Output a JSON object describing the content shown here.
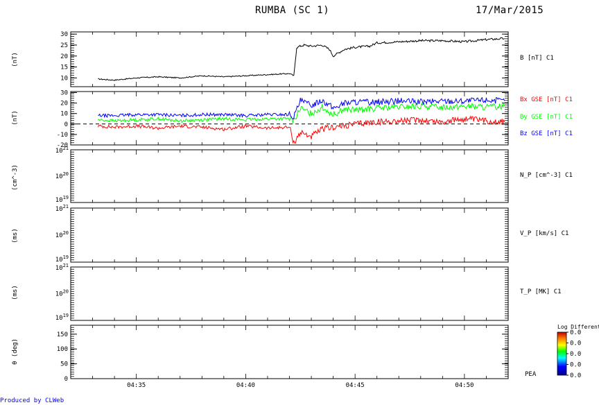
{
  "header": {
    "title": "RUMBA (SC 1)",
    "date": "17/Mar/2015"
  },
  "footer": {
    "credit": "Produced by CLWeb"
  },
  "colorbar": {
    "title": "Log Differential",
    "tick_labels": [
      "0.0",
      "0.0",
      "0.0",
      "0.0",
      "0.0"
    ]
  },
  "chart_data": [
    {
      "type": "line",
      "panel": "b-magnitude",
      "ylabel": "(nT)",
      "ylim": [
        6,
        31
      ],
      "yticks": [
        10,
        15,
        20,
        25,
        30
      ],
      "ytick_labels": [
        "10",
        "15",
        "20",
        "25",
        "30"
      ],
      "xlim": [
        "04:32:00",
        "04:52:00"
      ],
      "series": [
        {
          "name": "B [nT] C1",
          "color": "#000000",
          "x": [
            "04:33:15",
            "04:34:00",
            "04:35:00",
            "04:36:00",
            "04:37:00",
            "04:38:00",
            "04:39:00",
            "04:40:00",
            "04:41:00",
            "04:42:00",
            "04:42:12",
            "04:42:20",
            "04:42:40",
            "04:43:00",
            "04:43:30",
            "04:43:50",
            "04:44:00",
            "04:44:30",
            "04:45:00",
            "04:45:40",
            "04:46:00",
            "04:47:00",
            "04:48:00",
            "04:49:00",
            "04:50:00",
            "04:51:00",
            "04:51:50"
          ],
          "y": [
            9.5,
            9.0,
            10.0,
            10.5,
            10.0,
            11.0,
            10.5,
            11.0,
            11.5,
            12.0,
            11.0,
            24.0,
            25.0,
            24.5,
            25.0,
            23.0,
            20.0,
            23.0,
            24.0,
            24.5,
            26.0,
            26.5,
            27.0,
            27.0,
            26.5,
            27.5,
            28.0
          ]
        }
      ]
    },
    {
      "type": "line",
      "panel": "b-gse-components",
      "ylabel": "(nT)",
      "ylim": [
        -20,
        31
      ],
      "yticks": [
        -20,
        -10,
        0,
        10,
        20,
        30
      ],
      "ytick_labels": [
        "-20",
        "-10",
        "0",
        "10",
        "20",
        "30"
      ],
      "xlim": [
        "04:32:00",
        "04:52:00"
      ],
      "series": [
        {
          "name": "Bx GSE [nT] C1",
          "color": "#ff0000",
          "x": [
            "04:33:15",
            "04:34:00",
            "04:35:00",
            "04:36:00",
            "04:37:00",
            "04:38:00",
            "04:39:00",
            "04:40:00",
            "04:41:00",
            "04:42:00",
            "04:42:12",
            "04:42:30",
            "04:43:00",
            "04:43:30",
            "04:44:00",
            "04:44:30",
            "04:45:00",
            "04:46:00",
            "04:47:00",
            "04:48:00",
            "04:49:00",
            "04:50:00",
            "04:51:00",
            "04:51:50"
          ],
          "y": [
            -2,
            -3,
            -2,
            -4,
            -2,
            -3,
            -5,
            -2,
            -4,
            -3,
            -18,
            -8,
            -12,
            -5,
            -3,
            -2,
            0,
            2,
            3,
            4,
            2,
            5,
            3,
            2
          ]
        },
        {
          "name": "By GSE [nT] C1",
          "color": "#00ff00",
          "x": [
            "04:33:15",
            "04:34:00",
            "04:35:00",
            "04:36:00",
            "04:37:00",
            "04:38:00",
            "04:39:00",
            "04:40:00",
            "04:41:00",
            "04:42:00",
            "04:42:12",
            "04:42:30",
            "04:43:00",
            "04:43:30",
            "04:44:00",
            "04:44:30",
            "04:45:00",
            "04:46:00",
            "04:47:00",
            "04:48:00",
            "04:49:00",
            "04:50:00",
            "04:51:00",
            "04:51:50"
          ],
          "y": [
            4,
            3,
            4,
            5,
            3,
            4,
            5,
            4,
            5,
            5,
            3,
            15,
            10,
            16,
            9,
            14,
            13,
            15,
            16,
            17,
            16,
            17,
            16,
            17
          ]
        },
        {
          "name": "Bz GSE [nT] C1",
          "color": "#0000ff",
          "x": [
            "04:33:15",
            "04:34:00",
            "04:35:00",
            "04:36:00",
            "04:37:00",
            "04:38:00",
            "04:39:00",
            "04:40:00",
            "04:41:00",
            "04:42:00",
            "04:42:12",
            "04:42:30",
            "04:43:00",
            "04:43:30",
            "04:44:00",
            "04:44:30",
            "04:45:00",
            "04:46:00",
            "04:47:00",
            "04:48:00",
            "04:49:00",
            "04:50:00",
            "04:51:00",
            "04:51:50"
          ],
          "y": [
            8,
            8,
            9,
            9,
            8,
            9,
            9,
            8,
            9,
            9,
            7,
            22,
            18,
            23,
            15,
            20,
            21,
            21,
            22,
            21,
            22,
            22,
            23,
            22
          ]
        }
      ]
    },
    {
      "type": "line",
      "panel": "proton-density",
      "ylabel": "(cm^-3)",
      "scale": "log",
      "ylim": [
        1e+19,
        1e+21
      ],
      "ytick_labels": [
        "10^21",
        "10^20",
        "10^19"
      ],
      "series": [
        {
          "name": "N_P [cm^-3] C1",
          "x": [],
          "y": []
        }
      ]
    },
    {
      "type": "line",
      "panel": "proton-velocity",
      "ylabel": "(ms)",
      "scale": "log",
      "ylim": [
        1e+19,
        1e+21
      ],
      "ytick_labels": [
        "10^21",
        "10^20",
        "10^19"
      ],
      "series": [
        {
          "name": "V_P [km/s] C1",
          "x": [],
          "y": []
        }
      ]
    },
    {
      "type": "line",
      "panel": "proton-temperature",
      "ylabel": "(ms)",
      "scale": "log",
      "ylim": [
        1e+19,
        1e+21
      ],
      "ytick_labels": [
        "10^21",
        "10^20",
        "10^19"
      ],
      "series": [
        {
          "name": "T_P [MK] C1",
          "x": [],
          "y": []
        }
      ]
    },
    {
      "type": "heatmap",
      "panel": "pitch-angle",
      "ylabel": "θ (deg)",
      "ylim": [
        0,
        180
      ],
      "yticks": [
        0,
        50,
        100,
        150
      ],
      "ytick_labels": [
        "0",
        "50",
        "100",
        "150"
      ],
      "label": "PEA",
      "xlim": [
        "04:32:00",
        "04:52:00"
      ],
      "xtick_labels": [
        "04:35",
        "04:40",
        "04:45",
        "04:50"
      ]
    }
  ]
}
